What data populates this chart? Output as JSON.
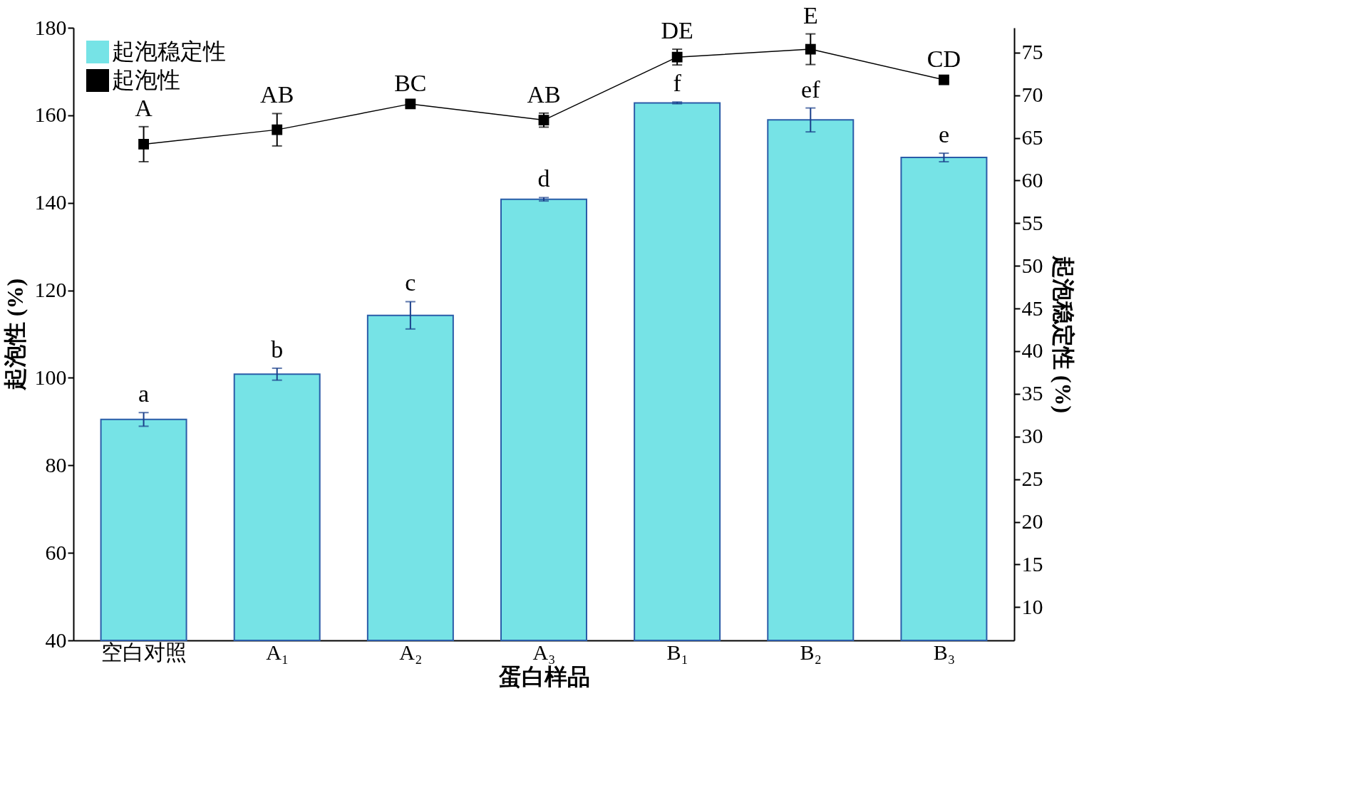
{
  "chart_data": {
    "type": "bar",
    "xlabel": "蛋白样品",
    "ylabel": "起泡性 (%)",
    "y2label": "起泡稳定性 (%)",
    "categories": [
      "空白对照",
      "A₁",
      "A₂",
      "A₃",
      "B₁",
      "B₂",
      "B₃"
    ],
    "series": [
      {
        "name": "起泡稳定性",
        "axis": "y2",
        "color": "#76e3e6",
        "values": [
          32.0,
          37.3,
          44.2,
          57.8,
          69.1,
          67.1,
          62.7
        ],
        "errors": [
          0.8,
          0.7,
          1.6,
          0.2,
          0.1,
          1.4,
          0.5
        ],
        "value_labels": [
          "a",
          "b",
          "c",
          "d",
          "f",
          "ef",
          "e"
        ]
      },
      {
        "name": "起泡性",
        "type": "line",
        "color": "#000000",
        "marker": "square",
        "values": [
          153.4,
          156.7,
          162.6,
          158.9,
          173.3,
          175.1,
          168.1
        ],
        "errors": [
          4,
          3.7,
          0.5,
          1.6,
          1.8,
          3.5,
          0.5
        ],
        "value_labels": [
          "A",
          "AB",
          "BC",
          "AB",
          "DE",
          "E",
          "CD"
        ]
      }
    ],
    "ylim": [
      40,
      180
    ],
    "yticks": [
      40,
      60,
      80,
      100,
      120,
      140,
      160,
      180
    ],
    "y2lim": [
      6.1,
      77.9
    ],
    "y2ticks": [
      10,
      15,
      20,
      25,
      30,
      35,
      40,
      45,
      50,
      55,
      60,
      65,
      70,
      75
    ],
    "legend": "top left",
    "grid": false
  }
}
